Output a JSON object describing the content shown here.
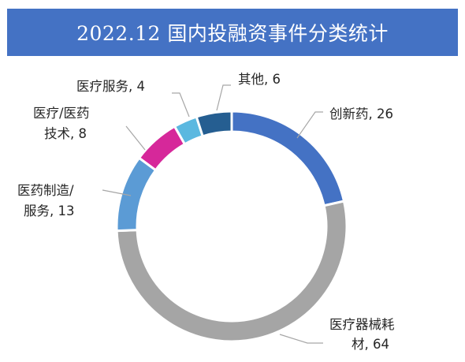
{
  "title": "2022.12 国内投融资事件分类统计",
  "chart_data": {
    "type": "pie",
    "variant": "donut",
    "title": "2022.12 国内投融资事件分类统计",
    "categories": [
      "创新药",
      "医疗器械耗材",
      "医药制造/服务",
      "医疗/医药技术",
      "医疗服务",
      "其他"
    ],
    "values": [
      26,
      64,
      13,
      8,
      4,
      6
    ],
    "colors": [
      "#4472c4",
      "#a5a5a5",
      "#5b9bd5",
      "#d6289a",
      "#5bb8e0",
      "#255e91"
    ],
    "labels": [
      {
        "lines": [
          "创新药, 26"
        ]
      },
      {
        "lines": [
          "医疗器械耗",
          "材, 64"
        ]
      },
      {
        "lines": [
          "医药制造/",
          "服务, 13"
        ]
      },
      {
        "lines": [
          "医疗/医药",
          "技术, 8"
        ]
      },
      {
        "lines": [
          "医疗服务, 4"
        ]
      },
      {
        "lines": [
          "其他, 6"
        ]
      }
    ],
    "legend": "none"
  }
}
